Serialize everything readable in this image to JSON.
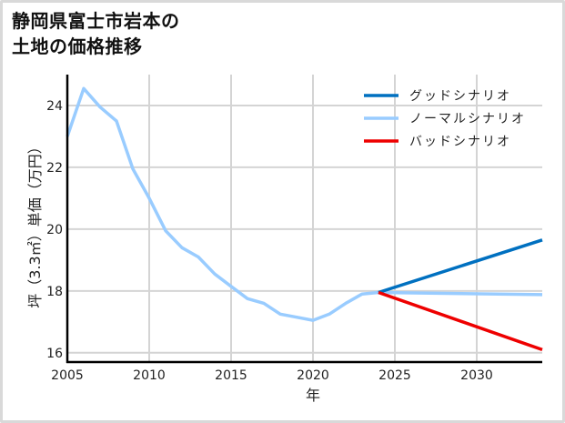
{
  "title_lines": [
    "静岡県富士市岩本の",
    "土地の価格推移"
  ],
  "chart_data": {
    "type": "line",
    "title": "静岡県富士市岩本の土地の価格推移",
    "xlabel": "年",
    "ylabel": "坪（3.3㎡）単価（万円）",
    "xlim": [
      2005,
      2034
    ],
    "ylim": [
      15.7,
      25.0
    ],
    "xticks": [
      2005,
      2010,
      2015,
      2020,
      2025,
      2030
    ],
    "yticks": [
      16,
      18,
      20,
      22,
      24
    ],
    "grid": true,
    "legend_position": "upper right",
    "series": [
      {
        "name": "ノーマルシナリオ",
        "color": "#99ccff",
        "x": [
          2005,
          2006,
          2007,
          2008,
          2009,
          2010,
          2011,
          2012,
          2013,
          2014,
          2015,
          2016,
          2017,
          2018,
          2019,
          2020,
          2021,
          2022,
          2023,
          2024,
          2034
        ],
        "values": [
          23.0,
          24.55,
          23.95,
          23.5,
          21.95,
          21.0,
          19.95,
          19.4,
          19.1,
          18.55,
          18.15,
          17.75,
          17.6,
          17.25,
          17.15,
          17.05,
          17.25,
          17.6,
          17.9,
          17.95,
          17.88
        ]
      },
      {
        "name": "グッドシナリオ",
        "color": "#0070c0",
        "x": [
          2024,
          2034
        ],
        "values": [
          17.95,
          19.65
        ]
      },
      {
        "name": "バッドシナリオ",
        "color": "#ee0000",
        "x": [
          2024,
          2034
        ],
        "values": [
          17.95,
          16.1
        ]
      }
    ]
  },
  "legend": [
    {
      "label": "グッドシナリオ",
      "color": "#0070c0"
    },
    {
      "label": "ノーマルシナリオ",
      "color": "#99ccff"
    },
    {
      "label": "バッドシナリオ",
      "color": "#ee0000"
    }
  ]
}
